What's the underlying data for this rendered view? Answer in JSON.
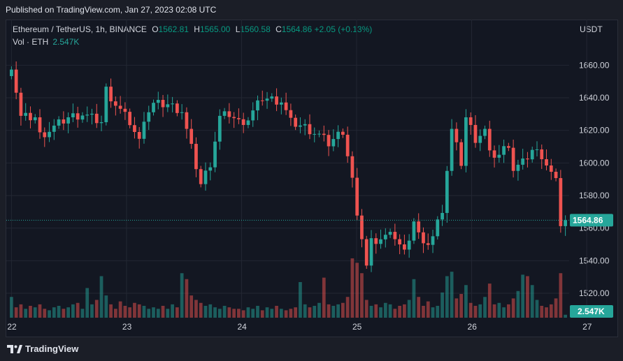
{
  "header": {
    "published": "Published on TradingView.com, Jan 27, 2023 02:08 UTC"
  },
  "legend": {
    "symbol": "Ethereum / TetherUS, 1h, BINANCE",
    "open_key": "O",
    "open": "1562.81",
    "high_key": "H",
    "high": "1565.00",
    "low_key": "L",
    "low": "1560.58",
    "close_key": "C",
    "close": "1564.86",
    "change": "+2.05 (+0.13%)",
    "vol_label": "Vol · ETH",
    "vol_value": "2.547K"
  },
  "axis": {
    "unit": "USDT"
  },
  "footer": {
    "brand": "TradingView"
  },
  "colors": {
    "up": "#26a69a",
    "down": "#ef5350",
    "grid": "#232733",
    "text": "#d1d4dc"
  },
  "chart_data": {
    "type": "candlestick",
    "ylim": [
      1505,
      1670
    ],
    "y_ticks": [
      "1520.00",
      "1540.00",
      "1560.00",
      "1580.00",
      "1600.00",
      "1620.00",
      "1640.00",
      "1660.00"
    ],
    "x_ticks": [
      "22",
      "23",
      "24",
      "25",
      "26",
      "27"
    ],
    "last_price": "1564.86",
    "last_volume": "2.547K",
    "volume_max": 40,
    "anchors": [
      [
        0,
        1660
      ],
      [
        2,
        1628
      ],
      [
        5,
        1628
      ],
      [
        6,
        1617
      ],
      [
        8,
        1620
      ],
      [
        12,
        1628
      ],
      [
        15,
        1630
      ],
      [
        19,
        1625
      ],
      [
        20,
        1645
      ],
      [
        22,
        1636
      ],
      [
        25,
        1625
      ],
      [
        27,
        1613
      ],
      [
        28,
        1628
      ],
      [
        30,
        1636
      ],
      [
        33,
        1636
      ],
      [
        36,
        1632
      ],
      [
        37,
        1620
      ],
      [
        40,
        1587
      ],
      [
        42,
        1600
      ],
      [
        44,
        1628
      ],
      [
        46,
        1630
      ],
      [
        48,
        1625
      ],
      [
        50,
        1627
      ],
      [
        53,
        1640
      ],
      [
        57,
        1638
      ],
      [
        59,
        1625
      ],
      [
        62,
        1622
      ],
      [
        65,
        1617
      ],
      [
        67,
        1612
      ],
      [
        70,
        1620
      ],
      [
        72,
        1590
      ],
      [
        73,
        1565
      ],
      [
        74,
        1555
      ],
      [
        75,
        1537
      ],
      [
        76,
        1552
      ],
      [
        79,
        1555
      ],
      [
        81,
        1555
      ],
      [
        83,
        1545
      ],
      [
        85,
        1565
      ],
      [
        87,
        1548
      ],
      [
        89,
        1555
      ],
      [
        91,
        1572
      ],
      [
        93,
        1620
      ],
      [
        95,
        1600
      ],
      [
        96,
        1628
      ],
      [
        98,
        1615
      ],
      [
        100,
        1620
      ],
      [
        101,
        1605
      ],
      [
        103,
        1605
      ],
      [
        105,
        1612
      ],
      [
        106,
        1596
      ],
      [
        108,
        1600
      ],
      [
        110,
        1608
      ],
      [
        112,
        1605
      ],
      [
        115,
        1588
      ],
      [
        116,
        1563
      ],
      [
        117,
        1565
      ]
    ],
    "volumes": [
      14,
      7,
      9,
      6,
      8,
      7,
      9,
      6,
      5,
      7,
      8,
      6,
      7,
      9,
      10,
      6,
      20,
      9,
      12,
      28,
      15,
      9,
      6,
      11,
      8,
      7,
      10,
      9,
      8,
      6,
      7,
      6,
      8,
      6,
      9,
      7,
      30,
      26,
      15,
      12,
      10,
      8,
      9,
      7,
      6,
      8,
      7,
      6,
      6,
      5,
      7,
      6,
      8,
      5,
      7,
      6,
      8,
      6,
      5,
      6,
      7,
      24,
      9,
      7,
      8,
      10,
      27,
      9,
      8,
      9,
      10,
      14,
      40,
      37,
      30,
      12,
      8,
      9,
      7,
      10,
      9,
      6,
      8,
      9,
      12,
      26,
      14,
      8,
      11,
      7,
      8,
      17,
      28,
      31,
      13,
      16,
      22,
      10,
      8,
      9,
      14,
      23,
      9,
      10,
      7,
      9,
      13,
      18,
      29,
      28,
      22,
      12,
      8,
      7,
      9,
      13,
      30,
      2
    ]
  }
}
